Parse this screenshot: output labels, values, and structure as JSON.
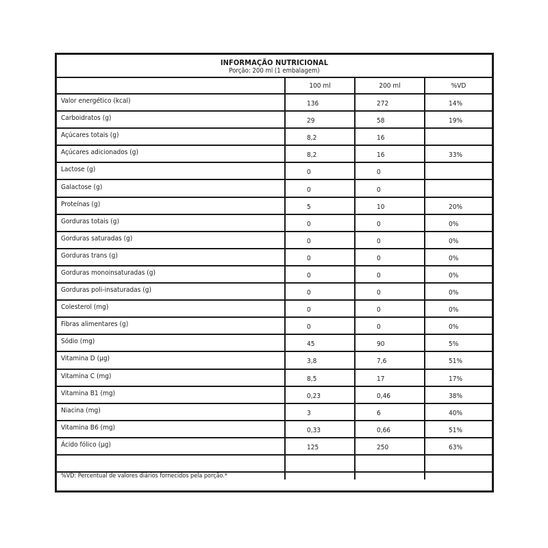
{
  "header": {
    "title": "INFORMAÇÃO NUTRICIONAL",
    "portion": "Porção: 200 ml (1 embalagem)"
  },
  "columns": [
    "",
    "100 ml",
    "200 ml",
    "%VD"
  ],
  "rows": [
    {
      "label": "Valor energético (kcal)",
      "per100": "136",
      "per200": "272",
      "vd": "14%"
    },
    {
      "label": "Carboidratos (g)",
      "per100": "29",
      "per200": "58",
      "vd": "19%"
    },
    {
      "label": "Açúcares totais (g)",
      "per100": "8,2",
      "per200": "16",
      "vd": ""
    },
    {
      "label": "Açúcares adicionados (g)",
      "per100": "8,2",
      "per200": "16",
      "vd": "33%"
    },
    {
      "label": "Lactose (g)",
      "per100": "0",
      "per200": "0",
      "vd": ""
    },
    {
      "label": "Galactose (g)",
      "per100": "0",
      "per200": "0",
      "vd": ""
    },
    {
      "label": "Proteínas (g)",
      "per100": "5",
      "per200": "10",
      "vd": "20%"
    },
    {
      "label": "Gorduras totais (g)",
      "per100": "0",
      "per200": "0",
      "vd": "0%"
    },
    {
      "label": "Gorduras saturadas (g)",
      "per100": "0",
      "per200": "0",
      "vd": "0%"
    },
    {
      "label": "Gorduras trans (g)",
      "per100": "0",
      "per200": "0",
      "vd": "0%"
    },
    {
      "label": "Gorduras monoinsaturadas (g)",
      "per100": "0",
      "per200": "0",
      "vd": "0%"
    },
    {
      "label": "Gorduras poli-insaturadas (g)",
      "per100": "0",
      "per200": "0",
      "vd": "0%"
    },
    {
      "label": "Colesterol (mg)",
      "per100": "0",
      "per200": "0",
      "vd": "0%"
    },
    {
      "label": "Fibras alimentares (g)",
      "per100": "0",
      "per200": "0",
      "vd": "0%"
    },
    {
      "label": "Sódio (mg)",
      "per100": "45",
      "per200": "90",
      "vd": "5%"
    },
    {
      "label": "Vitamina D (µg)",
      "per100": "3,8",
      "per200": "7,6",
      "vd": "51%"
    },
    {
      "label": "Vitamina C (mg)",
      "per100": "8,5",
      "per200": "17",
      "vd": "17%"
    },
    {
      "label": "Vitamina B1 (mg)",
      "per100": "0,23",
      "per200": "0,46",
      "vd": "38%"
    },
    {
      "label": "Niacina (mg)",
      "per100": "3",
      "per200": "6",
      "vd": "40%"
    },
    {
      "label": "Vitamina B6 (mg)",
      "per100": "0,33",
      "per200": "0,66",
      "vd": "51%"
    },
    {
      "label": "Ácido fólico (µg)",
      "per100": "125",
      "per200": "250",
      "vd": "63%"
    }
  ],
  "footnote": "%VD: Percentual de valores diários fornecidos pela porção.*"
}
